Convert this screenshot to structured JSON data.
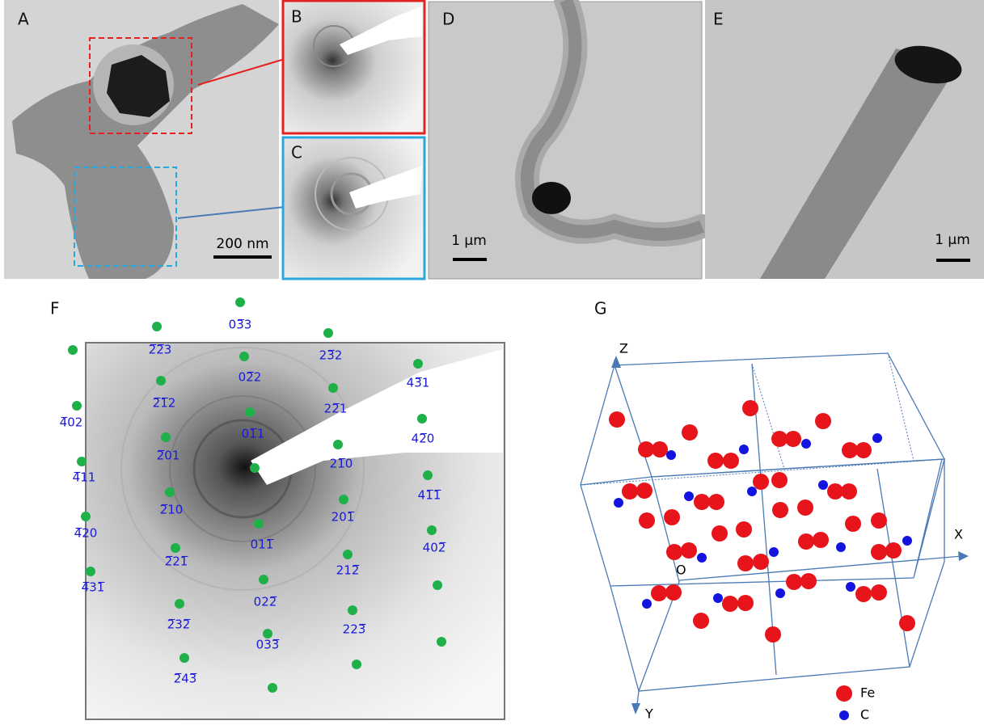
{
  "panels": {
    "a": "A",
    "b": "B",
    "c": "C",
    "d": "D",
    "e": "E",
    "f": "F",
    "g": "G"
  },
  "scale_bars": {
    "a": "200 nm",
    "d": "1 μm",
    "e": "1 μm"
  },
  "diffraction_indices": [
    "03̅3",
    "2̅2̅3",
    "23̅2",
    "02̅2",
    "2̅1̅2",
    "43̅1",
    "22̅1",
    "4̅02",
    "01̅1",
    "42̅0",
    "2̅01",
    "21̅0",
    "4̅11",
    "2̅10",
    "41̅1̅",
    "201̅",
    "4̅20",
    "011̅",
    "402̅",
    "2̅21̅",
    "212̅",
    "4̅31̅",
    "022̅",
    "2̅32̅",
    "223̅",
    "033̅",
    "2̅43̅"
  ],
  "lattice": {
    "axes": {
      "x": "X",
      "y": "Y",
      "z": "Z",
      "origin": "O"
    },
    "legend": {
      "fe": "Fe",
      "c": "C"
    }
  }
}
